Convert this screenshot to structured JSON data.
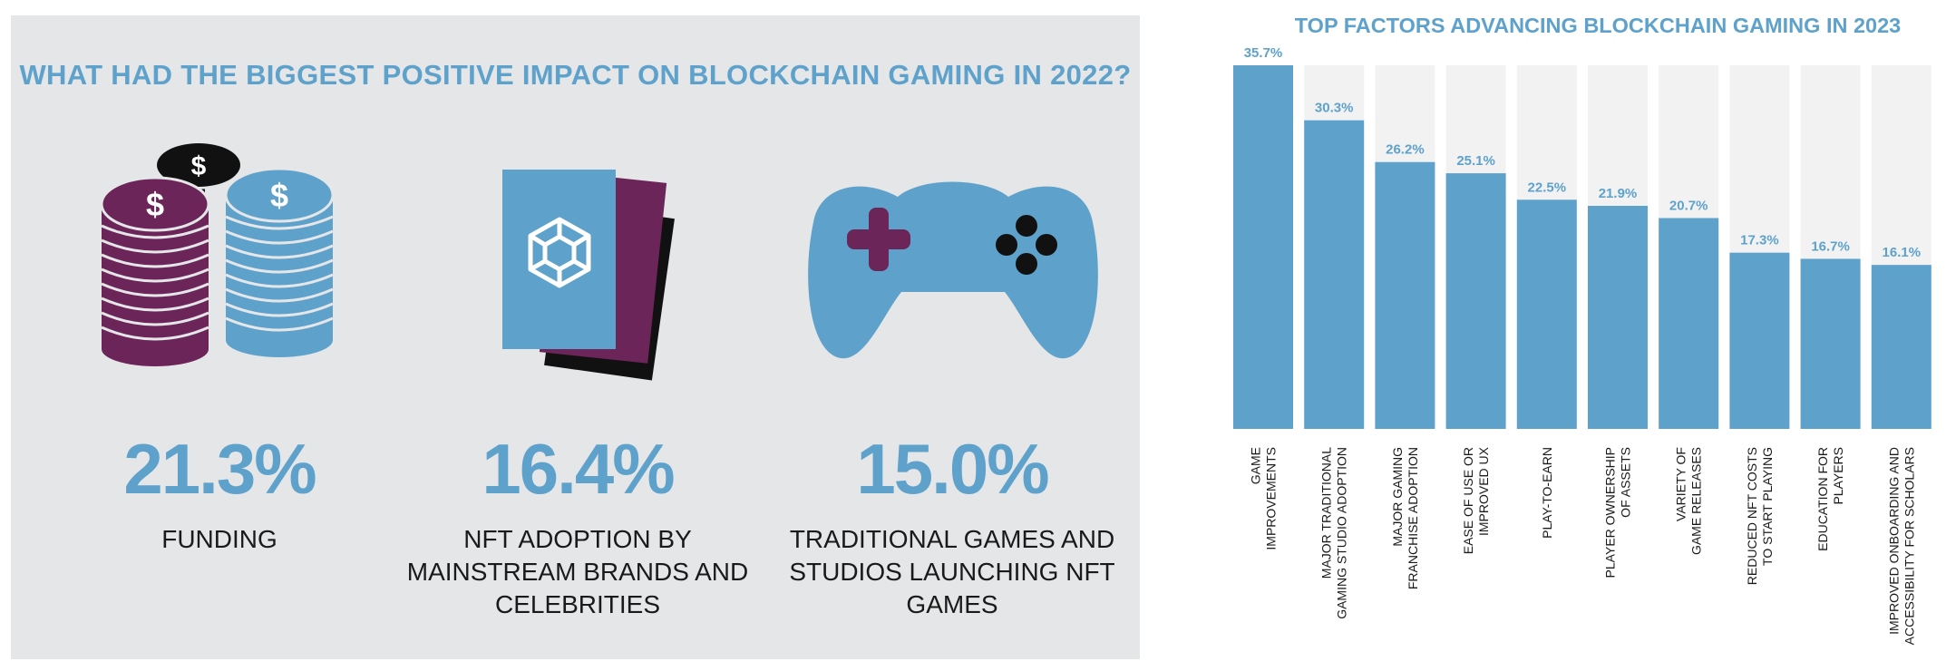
{
  "left": {
    "title": "WHAT HAD THE BIGGEST POSITIVE IMPACT ON BLOCKCHAIN GAMING IN 2022?",
    "stats": [
      {
        "value": "21.3%",
        "label": "FUNDING",
        "icon": "coin-stacks-icon"
      },
      {
        "value": "16.4%",
        "label": "NFT ADOPTION BY MAINSTREAM BRANDS AND CELEBRITIES",
        "icon": "nft-cards-icon"
      },
      {
        "value": "15.0%",
        "label": "TRADITIONAL GAMES AND STUDIOS LAUNCHING NFT GAMES",
        "icon": "gamepad-icon"
      }
    ],
    "coin_symbol": "$"
  },
  "colors": {
    "accent": "#5ea2cc",
    "plum": "#6b2559",
    "panel": "#e5e6e8",
    "bar_bg": "#f2f2f2",
    "dark": "#111111"
  },
  "chart_data": {
    "type": "bar",
    "title": "TOP FACTORS ADVANCING BLOCKCHAIN GAMING IN 2023",
    "xlabel": "",
    "ylabel": "",
    "ylim": [
      0,
      35.7
    ],
    "value_suffix": "%",
    "categories": [
      [
        "GAME",
        "IMPROVEMENTS"
      ],
      [
        "MAJOR TRADITIONAL",
        "GAMING STUDIO ADOPTION"
      ],
      [
        "MAJOR GAMING",
        "FRANCHISE ADOPTION"
      ],
      [
        "EASE OF USE OR",
        "IMPROVED UX"
      ],
      [
        "PLAY-TO-EARN"
      ],
      [
        "PLAYER OWNERSHIP",
        "OF ASSETS"
      ],
      [
        "VARIETY OF",
        "GAME RELEASES"
      ],
      [
        "REDUCED NFT COSTS",
        "TO START PLAYING"
      ],
      [
        "EDUCATION FOR",
        "PLAYERS"
      ],
      [
        "IMPROVED ONBOARDING AND",
        "ACCESSIBILITY FOR SCHOLARS"
      ]
    ],
    "values": [
      35.7,
      30.3,
      26.2,
      25.1,
      22.5,
      21.9,
      20.7,
      17.3,
      16.7,
      16.1
    ]
  }
}
